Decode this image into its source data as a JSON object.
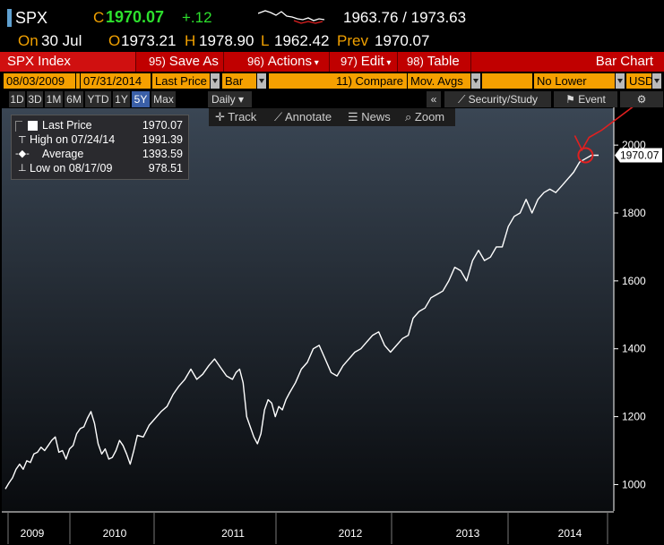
{
  "quote": {
    "ticker": "SPX",
    "close_label": "C",
    "close_value": "1970.07",
    "change": "+.12",
    "bid_ask": "1963.76 / 1973.63",
    "date_label": "On",
    "date": "30 Jul",
    "open_label": "O",
    "open": "1973.21",
    "high_label": "H",
    "high": "1978.90",
    "low_label": "L",
    "low": "1962.42",
    "prev_label": "Prev",
    "prev": "1970.07"
  },
  "toolbar": {
    "index_label": "SPX Index",
    "save_num": "95)",
    "save_label": "Save As",
    "actions_num": "96)",
    "actions_label": "Actions",
    "edit_num": "97)",
    "edit_label": "Edit",
    "table_num": "98)",
    "table_label": "Table",
    "chart_type_label": "Bar Chart"
  },
  "settings": {
    "start_date": "08/03/2009",
    "end_date": "07/31/2014",
    "field": "Last Price",
    "style": "Bar",
    "compare_num": "11)",
    "compare_label": "Compare",
    "compare_value": "Mov. Avgs",
    "lower_chart": "No Lower Chart",
    "currency": "USD"
  },
  "ranges": [
    "1D",
    "3D",
    "1M",
    "6M",
    "YTD",
    "1Y",
    "5Y",
    "Max"
  ],
  "active_range": "5Y",
  "period": "Daily",
  "right_tools": {
    "collapse": "«",
    "security": "Security/Study",
    "event": "Event"
  },
  "chart_tools": [
    "Track",
    "Annotate",
    "News",
    "Zoom"
  ],
  "legend": {
    "last_price_label": "Last Price",
    "last_price": "1970.07",
    "high_label": "High on 07/24/14",
    "high": "1991.39",
    "average_label": "Average",
    "average": "1393.59",
    "low_label": "Low on 08/17/09",
    "low": "978.51"
  },
  "chart_data": {
    "type": "line",
    "title": "",
    "xlabel": "",
    "ylabel": "",
    "ylim": [
      930,
      2090
    ],
    "yticks": [
      1000,
      1200,
      1400,
      1600,
      1800,
      2000
    ],
    "xticks": [
      "2009",
      "2010",
      "2011",
      "2012",
      "2013",
      "2014"
    ],
    "last_value_label": "1970.07",
    "series": [
      {
        "x": [
          2009.59,
          2009.62,
          2009.65,
          2009.68,
          2009.71,
          2009.74,
          2009.77,
          2009.8,
          2009.83,
          2009.86,
          2009.89,
          2009.92,
          2009.95,
          2009.98,
          2010.01,
          2010.04,
          2010.07,
          2010.1,
          2010.13,
          2010.16,
          2010.19,
          2010.22,
          2010.25,
          2010.28,
          2010.31,
          2010.34,
          2010.37,
          2010.4,
          2010.43,
          2010.46,
          2010.49,
          2010.52,
          2010.55,
          2010.58,
          2010.61,
          2010.64,
          2010.67,
          2010.7,
          2010.75,
          2010.8,
          2010.85,
          2010.9,
          2010.95,
          2011.0,
          2011.05,
          2011.1,
          2011.15,
          2011.2,
          2011.25,
          2011.3,
          2011.35,
          2011.4,
          2011.45,
          2011.5,
          2011.53,
          2011.56,
          2011.59,
          2011.62,
          2011.65,
          2011.68,
          2011.71,
          2011.74,
          2011.77,
          2011.8,
          2011.83,
          2011.86,
          2011.89,
          2011.92,
          2011.95,
          2011.98,
          2012.03,
          2012.08,
          2012.13,
          2012.18,
          2012.23,
          2012.28,
          2012.33,
          2012.38,
          2012.43,
          2012.48,
          2012.53,
          2012.58,
          2012.63,
          2012.68,
          2012.73,
          2012.78,
          2012.83,
          2012.88,
          2012.93,
          2012.98,
          2013.02,
          2013.07,
          2013.12,
          2013.17,
          2013.22,
          2013.27,
          2013.32,
          2013.37,
          2013.42,
          2013.47,
          2013.52,
          2013.57,
          2013.62,
          2013.67,
          2013.72,
          2013.77,
          2013.82,
          2013.87,
          2013.92,
          2013.97,
          2014.02,
          2014.07,
          2014.12,
          2014.17,
          2014.22,
          2014.27,
          2014.32,
          2014.37,
          2014.42,
          2014.47,
          2014.52,
          2014.58
        ],
        "values": [
          987,
          1005,
          1020,
          1045,
          1060,
          1045,
          1070,
          1065,
          1090,
          1095,
          1110,
          1100,
          1115,
          1130,
          1140,
          1095,
          1100,
          1075,
          1105,
          1115,
          1150,
          1165,
          1170,
          1195,
          1215,
          1180,
          1120,
          1090,
          1105,
          1075,
          1080,
          1100,
          1130,
          1115,
          1090,
          1060,
          1100,
          1145,
          1140,
          1175,
          1195,
          1215,
          1230,
          1265,
          1290,
          1310,
          1340,
          1310,
          1325,
          1350,
          1370,
          1345,
          1320,
          1310,
          1330,
          1340,
          1300,
          1200,
          1170,
          1140,
          1120,
          1150,
          1220,
          1250,
          1240,
          1200,
          1230,
          1220,
          1250,
          1270,
          1300,
          1340,
          1360,
          1400,
          1410,
          1370,
          1330,
          1320,
          1350,
          1370,
          1390,
          1400,
          1420,
          1440,
          1450,
          1410,
          1390,
          1410,
          1430,
          1440,
          1490,
          1510,
          1520,
          1550,
          1560,
          1570,
          1600,
          1640,
          1630,
          1600,
          1660,
          1690,
          1660,
          1670,
          1700,
          1700,
          1760,
          1790,
          1800,
          1840,
          1800,
          1840,
          1860,
          1870,
          1860,
          1880,
          1900,
          1920,
          1950,
          1960,
          1970,
          1970
        ]
      }
    ]
  }
}
